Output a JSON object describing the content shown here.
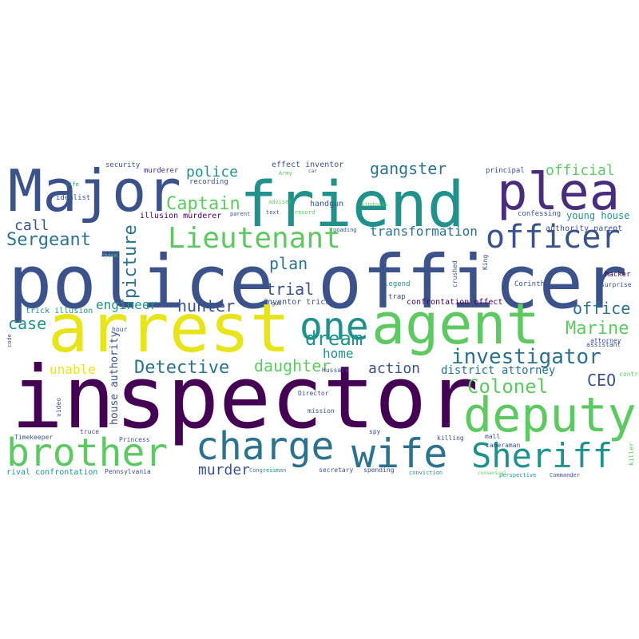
{
  "palette": [
    "#440154",
    "#3b528b",
    "#21918c",
    "#5ec962",
    "#fde725",
    "#2c728e",
    "#472d7b"
  ],
  "words": [
    {
      "text": "inspector",
      "color": "#440154"
    },
    {
      "text": "police officer",
      "color": "#3b528b"
    },
    {
      "text": "arrest",
      "color": "#e8e41a"
    },
    {
      "text": "friend",
      "color": "#21918c"
    },
    {
      "text": "Major",
      "color": "#3b528b"
    },
    {
      "text": "agent",
      "color": "#5ec962"
    },
    {
      "text": "plea",
      "color": "#472d7b"
    },
    {
      "text": "deputy",
      "color": "#5ec962"
    },
    {
      "text": "brother",
      "color": "#5ec962"
    },
    {
      "text": "wife",
      "color": "#2c728e"
    },
    {
      "text": "charge",
      "color": "#2c728e"
    },
    {
      "text": "Sheriff",
      "color": "#21918c"
    },
    {
      "text": "officer",
      "color": "#3b528b"
    },
    {
      "text": "one",
      "color": "#21918c"
    },
    {
      "text": "Lieutenant",
      "color": "#5ec962"
    },
    {
      "text": "investigator",
      "color": "#2c728e"
    },
    {
      "text": "Colonel",
      "color": "#5ec962"
    },
    {
      "text": "Captain",
      "color": "#5ec962"
    },
    {
      "text": "Sergeant",
      "color": "#2c728e"
    },
    {
      "text": "Detective",
      "color": "#2c728e"
    },
    {
      "text": "gangster",
      "color": "#2c728e"
    },
    {
      "text": "dream",
      "color": "#21918c"
    },
    {
      "text": "daughter",
      "color": "#5ec962"
    },
    {
      "text": "Marine",
      "color": "#5ec962"
    },
    {
      "text": "picture",
      "color": "#2c728e"
    },
    {
      "text": "official",
      "color": "#5ec962"
    },
    {
      "text": "transformation",
      "color": "#2c728e"
    },
    {
      "text": "police",
      "color": "#21918c"
    },
    {
      "text": "plan",
      "color": "#2c728e"
    },
    {
      "text": "trial",
      "color": "#3b528b"
    },
    {
      "text": "hunter",
      "color": "#3b528b"
    },
    {
      "text": "action",
      "color": "#3b528b"
    },
    {
      "text": "case",
      "color": "#21918c"
    },
    {
      "text": "call",
      "color": "#3b528b"
    },
    {
      "text": "CEO",
      "color": "#3b528b"
    },
    {
      "text": "office",
      "color": "#2c728e"
    },
    {
      "text": "murder",
      "color": "#3b528b"
    },
    {
      "text": "engineer",
      "color": "#21918c"
    },
    {
      "text": "unable",
      "color": "#e8e41a"
    },
    {
      "text": "home",
      "color": "#21918c"
    },
    {
      "text": "district attorney",
      "color": "#2c728e"
    },
    {
      "text": "house authority",
      "color": "#3b528b"
    },
    {
      "text": "young house",
      "color": "#21918c"
    },
    {
      "text": "authority parent",
      "color": "#3b528b"
    },
    {
      "text": "effect inventor",
      "color": "#3b528b"
    },
    {
      "text": "illusion murderer",
      "color": "#440154"
    },
    {
      "text": "trick illusion",
      "color": "#21918c"
    },
    {
      "text": "inventor trick",
      "color": "#3b528b"
    },
    {
      "text": "confrontation effect",
      "color": "#440154"
    },
    {
      "text": "rival confrontation",
      "color": "#21918c"
    },
    {
      "text": "handgun",
      "color": "#3b528b"
    },
    {
      "text": "recording",
      "color": "#3b528b"
    },
    {
      "text": "murderer",
      "color": "#472d7b"
    },
    {
      "text": "security",
      "color": "#3b528b"
    },
    {
      "text": "idealist",
      "color": "#3b528b"
    },
    {
      "text": "principal",
      "color": "#3b528b"
    },
    {
      "text": "confessing",
      "color": "#3b528b"
    },
    {
      "text": "hacker",
      "color": "#440154"
    },
    {
      "text": "Corinth",
      "color": "#3b528b"
    },
    {
      "text": "legend",
      "color": "#21918c"
    },
    {
      "text": "trap",
      "color": "#3b528b"
    },
    {
      "text": "crushed",
      "color": "#3b528b"
    },
    {
      "text": "King",
      "color": "#3b528b"
    },
    {
      "text": "Timekeeper",
      "color": "#3b528b"
    },
    {
      "text": "Pennsylvania",
      "color": "#3b528b"
    },
    {
      "text": "Princess",
      "color": "#3b528b"
    },
    {
      "text": "truce",
      "color": "#3b528b"
    },
    {
      "text": "Director",
      "color": "#3b528b"
    },
    {
      "text": "mission",
      "color": "#3b528b"
    },
    {
      "text": "secretary",
      "color": "#3b528b"
    },
    {
      "text": "spending",
      "color": "#3b528b"
    },
    {
      "text": "Hussars",
      "color": "#3b528b"
    },
    {
      "text": "killing",
      "color": "#3b528b"
    },
    {
      "text": "cameraman",
      "color": "#3b528b"
    },
    {
      "text": "mall",
      "color": "#3b528b"
    },
    {
      "text": "spy",
      "color": "#3b528b"
    },
    {
      "text": "hour",
      "color": "#3b528b"
    },
    {
      "text": "parent",
      "color": "#3b528b"
    },
    {
      "text": "Army",
      "color": "#5ec962"
    },
    {
      "text": "adviser",
      "color": "#5ec962"
    },
    {
      "text": "text",
      "color": "#3b528b"
    },
    {
      "text": "record",
      "color": "#5ec962"
    },
    {
      "text": "goading",
      "color": "#3b528b"
    },
    {
      "text": "gun",
      "color": "#3b528b"
    },
    {
      "text": "assistant",
      "color": "#3b528b"
    },
    {
      "text": "attorney",
      "color": "#3b528b"
    },
    {
      "text": "surprise",
      "color": "#3b528b"
    },
    {
      "text": "contrast",
      "color": "#5ec962"
    },
    {
      "text": "code",
      "color": "#3b528b"
    },
    {
      "text": "video",
      "color": "#3b528b"
    },
    {
      "text": "chase",
      "color": "#5ec962"
    },
    {
      "text": "life",
      "color": "#21918c"
    },
    {
      "text": "car",
      "color": "#3b528b"
    },
    {
      "text": "kindness",
      "color": "#5ec962"
    },
    {
      "text": "killer",
      "color": "#5ec962"
    },
    {
      "text": "perspective",
      "color": "#21918c"
    },
    {
      "text": "Commander",
      "color": "#3b528b"
    },
    {
      "text": "conviction",
      "color": "#21918c"
    },
    {
      "text": "Congressman",
      "color": "#21918c"
    },
    {
      "text": "consensual",
      "color": "#5ec962"
    },
    {
      "text": "headquarters",
      "color": "#5ec962"
    }
  ]
}
